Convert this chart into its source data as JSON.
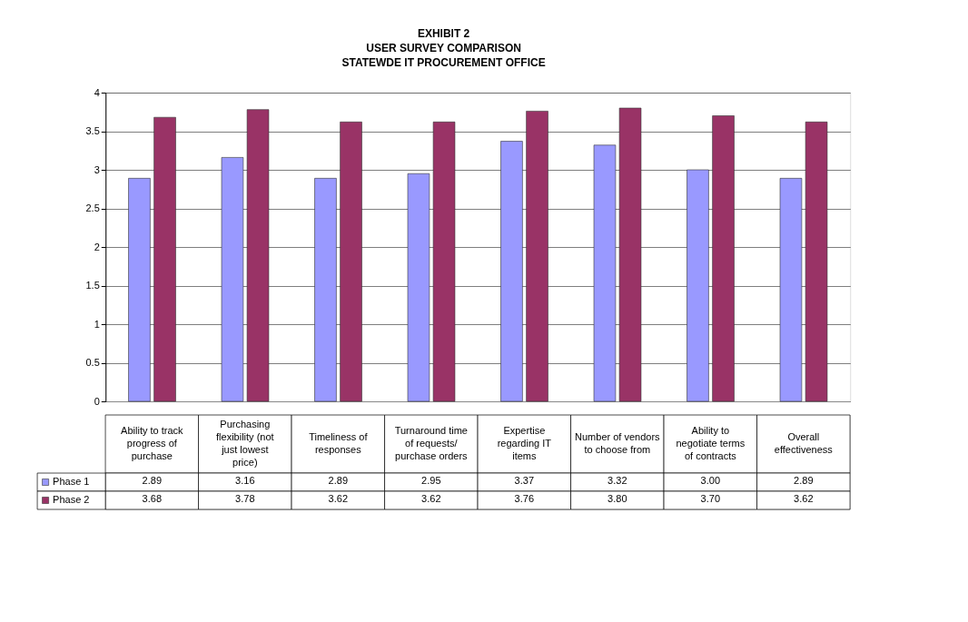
{
  "chart_data": {
    "type": "bar",
    "title": "EXHIBIT 2\nUSER SURVEY COMPARISON\nSTATEWDE IT PROCUREMENT OFFICE",
    "categories": [
      "Ability to track progress of purchase",
      "Purchasing flexibility (not just lowest price)",
      "Timeliness of responses",
      "Turnaround time of requests/ purchase orders",
      "Expertise regarding IT items",
      "Number of vendors to choose from",
      "Ability to negotiate terms of contracts",
      "Overall effectiveness"
    ],
    "series": [
      {
        "name": "Phase 1",
        "color": "#9999ff",
        "values": [
          2.89,
          3.16,
          2.89,
          2.95,
          3.37,
          3.32,
          3.0,
          2.89
        ],
        "value_labels": [
          "2.89",
          "3.16",
          "2.89",
          "2.95",
          "3.37",
          "3.32",
          "3.00",
          "2.89"
        ]
      },
      {
        "name": "Phase 2",
        "color": "#993366",
        "values": [
          3.68,
          3.78,
          3.62,
          3.62,
          3.76,
          3.8,
          3.7,
          3.62
        ],
        "value_labels": [
          "3.68",
          "3.78",
          "3.62",
          "3.62",
          "3.76",
          "3.80",
          "3.70",
          "3.62"
        ]
      }
    ],
    "ylim": [
      0,
      4
    ],
    "yticks": [
      0,
      0.5,
      1,
      1.5,
      2,
      2.5,
      3,
      3.5,
      4
    ],
    "grid": "y",
    "legend": "bottom"
  }
}
